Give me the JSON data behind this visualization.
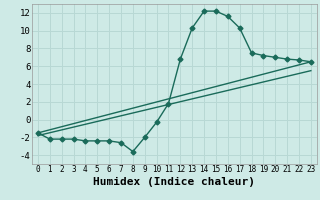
{
  "xlabel": "Humidex (Indice chaleur)",
  "background_color": "#ceeae6",
  "grid_color": "#b8d8d4",
  "line_color": "#1a6b5a",
  "xlim": [
    -0.5,
    23.5
  ],
  "ylim": [
    -5.0,
    13.0
  ],
  "xticks": [
    0,
    1,
    2,
    3,
    4,
    5,
    6,
    7,
    8,
    9,
    10,
    11,
    12,
    13,
    14,
    15,
    16,
    17,
    18,
    19,
    20,
    21,
    22,
    23
  ],
  "yticks": [
    -4,
    -2,
    0,
    2,
    4,
    6,
    8,
    10,
    12
  ],
  "series1_x": [
    0,
    1,
    2,
    3,
    4,
    5,
    6,
    7,
    8,
    9,
    10,
    11,
    12,
    13,
    14,
    15,
    16,
    17,
    18,
    19,
    20,
    21,
    22,
    23
  ],
  "series1_y": [
    -1.5,
    -2.2,
    -2.2,
    -2.2,
    -2.4,
    -2.4,
    -2.4,
    -2.6,
    -3.6,
    -2.0,
    -0.3,
    1.8,
    6.8,
    10.3,
    12.2,
    12.2,
    11.6,
    10.3,
    7.5,
    7.2,
    7.0,
    6.8,
    6.7,
    6.5
  ],
  "line1_x": [
    0,
    23
  ],
  "line1_y": [
    -1.5,
    6.5
  ],
  "line2_x": [
    0,
    23
  ],
  "line2_y": [
    -1.8,
    5.5
  ],
  "fontsize_xtick": 5.5,
  "fontsize_ytick": 6.5,
  "fontsize_label": 8,
  "marker": "D",
  "markersize": 2.5,
  "linewidth": 1.0
}
